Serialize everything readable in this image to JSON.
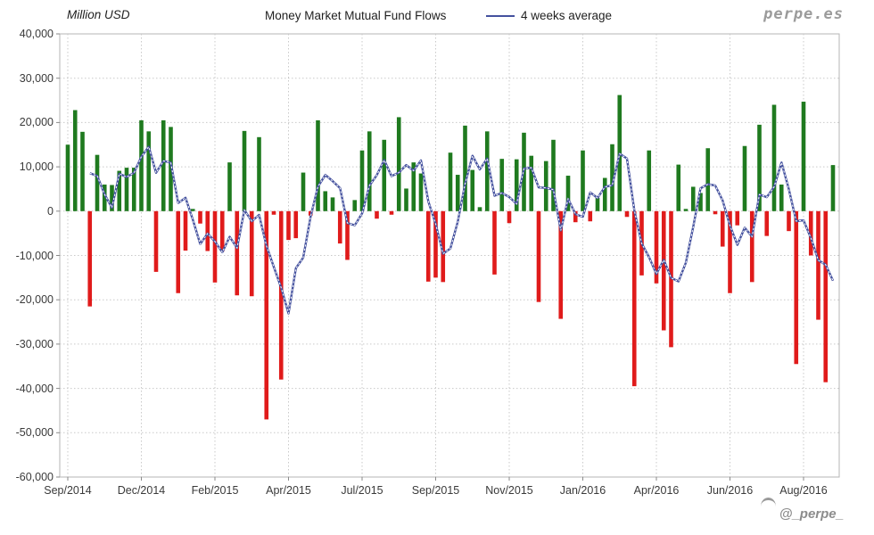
{
  "header": {
    "unit_label": "Million USD",
    "title": "Money Market Mutual Fund Flows",
    "legend_label": "4 weeks average",
    "watermark": "perpe.es"
  },
  "footer": {
    "handle": "@_perpe_"
  },
  "colors": {
    "positive_bar": "#1f7a1f",
    "negative_bar": "#e01b1b",
    "average_line": "#44519e",
    "grid": "#c9c9c9",
    "plot_border": "#b5b5b5",
    "tick_text": "#3a3a3a"
  },
  "chart_data": {
    "type": "bar",
    "title": "Money Market Mutual Fund Flows",
    "xlabel": "",
    "ylabel": "Million USD",
    "ylim": [
      -60000,
      40000
    ],
    "grid": true,
    "legend_position": "top",
    "y_tick_values": [
      40000,
      30000,
      20000,
      10000,
      0,
      -10000,
      -20000,
      -30000,
      -40000,
      -50000,
      -60000
    ],
    "y_tick_labels": [
      "40,000",
      "30,000",
      "20,000",
      "10,000",
      "0",
      "-10,000",
      "-20,000",
      "-30,000",
      "-40,000",
      "-50,000",
      "-60,000"
    ],
    "x_tick_labels": [
      "Sep/2014",
      "Dec/2014",
      "Feb/2015",
      "Apr/2015",
      "Jul/2015",
      "Sep/2015",
      "Nov/2015",
      "Jan/2016",
      "Apr/2016",
      "Jun/2016",
      "Aug/2016"
    ],
    "x_tick_week_indices": [
      0,
      10,
      20,
      30,
      40,
      50,
      60,
      70,
      80,
      90,
      100
    ],
    "series": [
      {
        "name": "Weekly fund flows (Million USD)",
        "type": "bar",
        "values": [
          15000,
          22800,
          17900,
          -21500,
          12700,
          6000,
          5900,
          9100,
          9800,
          9800,
          20500,
          18000,
          -13700,
          20500,
          19000,
          -18500,
          -8900,
          500,
          -2800,
          -9000,
          -16100,
          -9100,
          11000,
          -19000,
          18100,
          -19200,
          16700,
          -47000,
          -800,
          -38000,
          -6500,
          -6100,
          8700,
          -1000,
          20500,
          4500,
          3100,
          -7300,
          -11000,
          2500,
          13700,
          18000,
          -1700,
          16100,
          -800,
          21200,
          5100,
          11000,
          8500,
          -15900,
          -15000,
          -16000,
          13200,
          8200,
          19300,
          9300,
          900,
          18000,
          -14300,
          11800,
          -2700,
          11700,
          17700,
          12500,
          -20500,
          11300,
          16100,
          -24300,
          8000,
          -2500,
          13700,
          -2300,
          3000,
          7500,
          15100,
          26200,
          -1300,
          -39500,
          -14500,
          13700,
          -16300,
          -26900,
          -30700,
          10500,
          500,
          5500,
          4100,
          14200,
          -700,
          -8000,
          -18500,
          -3200,
          14700,
          -16000,
          19500,
          -5600,
          24000,
          6000,
          -4500,
          -34500,
          24700,
          -10000,
          -24500,
          -38600,
          10400
        ]
      },
      {
        "name": "4 weeks average",
        "type": "line",
        "derivation": "trailing 4-week mean of weekly fund flows"
      }
    ]
  }
}
